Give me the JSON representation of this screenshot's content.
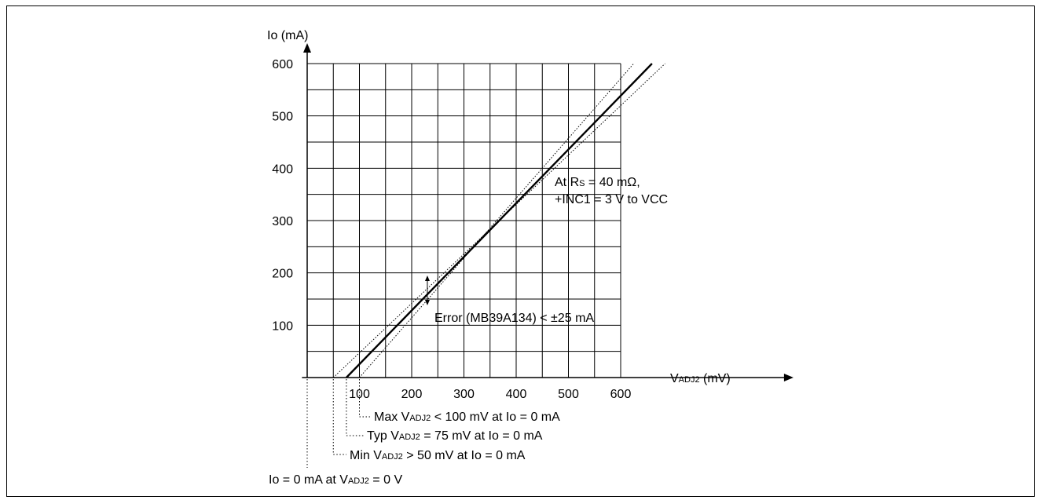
{
  "chart_data": {
    "type": "line",
    "y_axis_label": "Io (mA)",
    "x_axis_label": {
      "main": "V",
      "sub": "ADJ2",
      "unit": " (mV)"
    },
    "x_ticks": [
      "100",
      "200",
      "300",
      "400",
      "500",
      "600"
    ],
    "y_ticks": [
      "100",
      "200",
      "300",
      "400",
      "500",
      "600"
    ],
    "xlim": [
      -10,
      660
    ],
    "ylim": [
      0,
      600
    ],
    "grid": true,
    "series": [
      {
        "style": "solid",
        "points": [
          [
            75,
            0
          ],
          [
            660,
            600
          ]
        ]
      },
      {
        "style": "dotted",
        "points": [
          [
            50,
            0
          ],
          [
            685,
            600
          ]
        ]
      },
      {
        "style": "dotted",
        "points": [
          [
            100,
            0
          ],
          [
            625,
            600
          ]
        ]
      }
    ],
    "error_arrow": {
      "x": 230,
      "y_low": 150,
      "y_high": 183
    },
    "annotations": {
      "condition_line1": {
        "a": "At R",
        "sub": "S",
        "b": " = 40 mΩ,"
      },
      "condition_line2": "+INC1 = 3 V to VCC",
      "error_note": "Error (MB39A134) < ±25 mA",
      "max_note": {
        "a": "Max V",
        "sub": "ADJ2",
        "b": " < 100 mV at  Io = 0 mA"
      },
      "typ_note": {
        "a": "Typ V",
        "sub": "ADJ2",
        "b": " = 75 mV  at  Io = 0 mA"
      },
      "min_note": {
        "a": "Min V",
        "sub": "ADJ2",
        "b": " > 50 mV at  Io = 0 mA"
      },
      "zero_note": {
        "a": "Io = 0 mA at V",
        "sub": "ADJ2",
        "b": " = 0 V"
      }
    },
    "colors": {
      "line": "#000000",
      "grid": "#000000"
    }
  }
}
